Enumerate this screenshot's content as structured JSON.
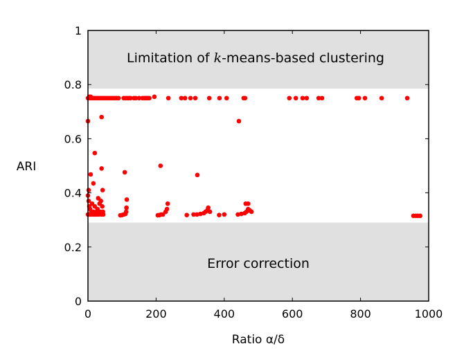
{
  "chart_data": {
    "type": "scatter",
    "xlabel": "Ratio α/δ",
    "ylabel": "ARI",
    "xlim": [
      0,
      1000
    ],
    "ylim": [
      0,
      1
    ],
    "xticks": [
      "0",
      "200",
      "400",
      "600",
      "800",
      "1000"
    ],
    "yticks": [
      "0",
      "0.2",
      "0.4",
      "0.6",
      "0.8",
      "1"
    ],
    "grid": false,
    "point_color": "#ff0000",
    "regions": [
      {
        "name": "limitation",
        "label_pre": "Limitation of ",
        "label_italic": "k",
        "label_post": "-means-based clustering",
        "y_range": [
          0.785,
          1
        ],
        "color": "#e0e0e0"
      },
      {
        "name": "error",
        "label_pre": "Error correction",
        "label_italic": "",
        "label_post": "",
        "y_range": [
          0,
          0.29
        ],
        "color": "#e0e0e0"
      }
    ],
    "points": [
      [
        0,
        0.75
      ],
      [
        2,
        0.75
      ],
      [
        4,
        0.755
      ],
      [
        6,
        0.75
      ],
      [
        8,
        0.755
      ],
      [
        10,
        0.75
      ],
      [
        12,
        0.75
      ],
      [
        15,
        0.75
      ],
      [
        18,
        0.75
      ],
      [
        20,
        0.75
      ],
      [
        25,
        0.75
      ],
      [
        30,
        0.75
      ],
      [
        35,
        0.75
      ],
      [
        40,
        0.75
      ],
      [
        45,
        0.75
      ],
      [
        50,
        0.75
      ],
      [
        55,
        0.75
      ],
      [
        60,
        0.75
      ],
      [
        65,
        0.75
      ],
      [
        70,
        0.75
      ],
      [
        75,
        0.75
      ],
      [
        80,
        0.75
      ],
      [
        85,
        0.75
      ],
      [
        90,
        0.75
      ],
      [
        105,
        0.75
      ],
      [
        110,
        0.75
      ],
      [
        115,
        0.75
      ],
      [
        120,
        0.75
      ],
      [
        125,
        0.75
      ],
      [
        135,
        0.75
      ],
      [
        140,
        0.75
      ],
      [
        150,
        0.75
      ],
      [
        160,
        0.75
      ],
      [
        165,
        0.75
      ],
      [
        170,
        0.75
      ],
      [
        175,
        0.75
      ],
      [
        180,
        0.75
      ],
      [
        195,
        0.755
      ],
      [
        236,
        0.75
      ],
      [
        274,
        0.75
      ],
      [
        285,
        0.75
      ],
      [
        301,
        0.75
      ],
      [
        315,
        0.75
      ],
      [
        356,
        0.75
      ],
      [
        386,
        0.75
      ],
      [
        407,
        0.75
      ],
      [
        457,
        0.75
      ],
      [
        461,
        0.75
      ],
      [
        591,
        0.75
      ],
      [
        610,
        0.75
      ],
      [
        630,
        0.75
      ],
      [
        642,
        0.75
      ],
      [
        677,
        0.75
      ],
      [
        687,
        0.75
      ],
      [
        789,
        0.75
      ],
      [
        795,
        0.75
      ],
      [
        813,
        0.75
      ],
      [
        862,
        0.75
      ],
      [
        937,
        0.75
      ],
      [
        0,
        0.665
      ],
      [
        40,
        0.68
      ],
      [
        443,
        0.665
      ],
      [
        20,
        0.547
      ],
      [
        40,
        0.49
      ],
      [
        108,
        0.476
      ],
      [
        213,
        0.5
      ],
      [
        321,
        0.466
      ],
      [
        8,
        0.468
      ],
      [
        16,
        0.435
      ],
      [
        2,
        0.41
      ],
      [
        43,
        0.41
      ],
      [
        0,
        0.39
      ],
      [
        2,
        0.37
      ],
      [
        4,
        0.35
      ],
      [
        6,
        0.34
      ],
      [
        10,
        0.33
      ],
      [
        12,
        0.36
      ],
      [
        14,
        0.32
      ],
      [
        16,
        0.33
      ],
      [
        20,
        0.35
      ],
      [
        22,
        0.32
      ],
      [
        25,
        0.33
      ],
      [
        28,
        0.34
      ],
      [
        30,
        0.38
      ],
      [
        32,
        0.32
      ],
      [
        34,
        0.36
      ],
      [
        36,
        0.33
      ],
      [
        38,
        0.37
      ],
      [
        40,
        0.32
      ],
      [
        42,
        0.35
      ],
      [
        44,
        0.33
      ],
      [
        45,
        0.32
      ],
      [
        0,
        0.32
      ],
      [
        5,
        0.32
      ],
      [
        8,
        0.32
      ],
      [
        18,
        0.32
      ],
      [
        26,
        0.32
      ],
      [
        95,
        0.317
      ],
      [
        100,
        0.318
      ],
      [
        105,
        0.32
      ],
      [
        110,
        0.322
      ],
      [
        112,
        0.33
      ],
      [
        113,
        0.345
      ],
      [
        114,
        0.375
      ],
      [
        205,
        0.317
      ],
      [
        210,
        0.318
      ],
      [
        215,
        0.32
      ],
      [
        220,
        0.32
      ],
      [
        228,
        0.33
      ],
      [
        232,
        0.34
      ],
      [
        234,
        0.36
      ],
      [
        290,
        0.318
      ],
      [
        310,
        0.32
      ],
      [
        320,
        0.32
      ],
      [
        330,
        0.322
      ],
      [
        340,
        0.325
      ],
      [
        345,
        0.33
      ],
      [
        350,
        0.335
      ],
      [
        353,
        0.345
      ],
      [
        358,
        0.33
      ],
      [
        385,
        0.318
      ],
      [
        400,
        0.32
      ],
      [
        440,
        0.32
      ],
      [
        450,
        0.322
      ],
      [
        460,
        0.325
      ],
      [
        465,
        0.33
      ],
      [
        470,
        0.34
      ],
      [
        475,
        0.335
      ],
      [
        480,
        0.33
      ],
      [
        463,
        0.36
      ],
      [
        470,
        0.36
      ],
      [
        955,
        0.315
      ],
      [
        962,
        0.315
      ],
      [
        968,
        0.315
      ],
      [
        975,
        0.315
      ]
    ]
  }
}
